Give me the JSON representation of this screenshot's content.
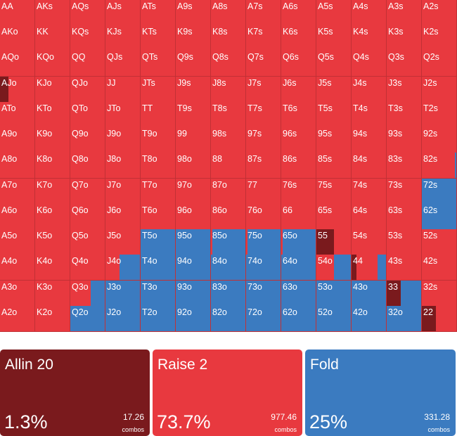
{
  "colors": {
    "allin": "#7a1a1d",
    "raise": "#e8393f",
    "fold": "#3b7bc0"
  },
  "grid": {
    "rows": [
      [
        "AA",
        "AKs",
        "AQs",
        "AJs",
        "ATs",
        "A9s",
        "A8s",
        "A7s",
        "A6s",
        "A5s",
        "A4s",
        "A3s",
        "A2s"
      ],
      [
        "AKo",
        "KK",
        "KQs",
        "KJs",
        "KTs",
        "K9s",
        "K8s",
        "K7s",
        "K6s",
        "K5s",
        "K4s",
        "K3s",
        "K2s"
      ],
      [
        "AQo",
        "KQo",
        "QQ",
        "QJs",
        "QTs",
        "Q9s",
        "Q8s",
        "Q7s",
        "Q6s",
        "Q5s",
        "Q4s",
        "Q3s",
        "Q2s"
      ],
      [
        "AJo",
        "KJo",
        "QJo",
        "JJ",
        "JTs",
        "J9s",
        "J8s",
        "J7s",
        "J6s",
        "J5s",
        "J4s",
        "J3s",
        "J2s"
      ],
      [
        "ATo",
        "KTo",
        "QTo",
        "JTo",
        "TT",
        "T9s",
        "T8s",
        "T7s",
        "T6s",
        "T5s",
        "T4s",
        "T3s",
        "T2s"
      ],
      [
        "A9o",
        "K9o",
        "Q9o",
        "J9o",
        "T9o",
        "99",
        "98s",
        "97s",
        "96s",
        "95s",
        "94s",
        "93s",
        "92s"
      ],
      [
        "A8o",
        "K8o",
        "Q8o",
        "J8o",
        "T8o",
        "98o",
        "88",
        "87s",
        "86s",
        "85s",
        "84s",
        "83s",
        "82s"
      ],
      [
        "A7o",
        "K7o",
        "Q7o",
        "J7o",
        "T7o",
        "97o",
        "87o",
        "77",
        "76s",
        "75s",
        "74s",
        "73s",
        "72s"
      ],
      [
        "A6o",
        "K6o",
        "Q6o",
        "J6o",
        "T6o",
        "96o",
        "86o",
        "76o",
        "66",
        "65s",
        "64s",
        "63s",
        "62s"
      ],
      [
        "A5o",
        "K5o",
        "Q5o",
        "J5o",
        "T5o",
        "95o",
        "85o",
        "75o",
        "65o",
        "55",
        "54s",
        "53s",
        "52s"
      ],
      [
        "A4o",
        "K4o",
        "Q4o",
        "J4o",
        "T4o",
        "94o",
        "84o",
        "74o",
        "64o",
        "54o",
        "44",
        "43s",
        "42s"
      ],
      [
        "A3o",
        "K3o",
        "Q3o",
        "J3o",
        "T3o",
        "93o",
        "83o",
        "73o",
        "63o",
        "53o",
        "43o",
        "33",
        "32s"
      ],
      [
        "A2o",
        "K2o",
        "Q2o",
        "J2o",
        "T2o",
        "92o",
        "82o",
        "72o",
        "62o",
        "52o",
        "42o",
        "32o",
        "22"
      ]
    ],
    "strategy": {
      "AJo": {
        "allin": 0.25,
        "raise": 0.75,
        "fold": 0
      },
      "82s": {
        "allin": 0,
        "raise": 0.95,
        "fold": 0.05
      },
      "72s": {
        "allin": 0,
        "raise": 0,
        "fold": 1
      },
      "62s": {
        "allin": 0,
        "raise": 0,
        "fold": 1
      },
      "J5o": {
        "allin": 0,
        "raise": 1,
        "fold": 0
      },
      "T5o": {
        "allin": 0,
        "raise": 0,
        "fold": 1
      },
      "95o": {
        "allin": 0,
        "raise": 0,
        "fold": 1
      },
      "85o": {
        "allin": 0,
        "raise": 0.05,
        "fold": 0.95
      },
      "75o": {
        "allin": 0,
        "raise": 0.05,
        "fold": 0.95
      },
      "65o": {
        "allin": 0,
        "raise": 0.05,
        "fold": 0.95
      },
      "55": {
        "allin": 0.5,
        "raise": 0.5,
        "fold": 0
      },
      "J4o": {
        "allin": 0,
        "raise": 0.4,
        "fold": 0.6
      },
      "T4o": {
        "allin": 0,
        "raise": 0,
        "fold": 1
      },
      "94o": {
        "allin": 0,
        "raise": 0,
        "fold": 1
      },
      "84o": {
        "allin": 0,
        "raise": 0,
        "fold": 1
      },
      "74o": {
        "allin": 0,
        "raise": 0,
        "fold": 1
      },
      "64o": {
        "allin": 0,
        "raise": 0,
        "fold": 1
      },
      "54o": {
        "allin": 0,
        "raise": 0.5,
        "fold": 0.5
      },
      "44": {
        "allin": 0.15,
        "raise": 0.6,
        "fold": 0.25
      },
      "Q3o": {
        "allin": 0,
        "raise": 0.6,
        "fold": 0.4
      },
      "J3o": {
        "allin": 0,
        "raise": 0,
        "fold": 1
      },
      "T3o": {
        "allin": 0,
        "raise": 0,
        "fold": 1
      },
      "93o": {
        "allin": 0,
        "raise": 0,
        "fold": 1
      },
      "83o": {
        "allin": 0,
        "raise": 0,
        "fold": 1
      },
      "73o": {
        "allin": 0,
        "raise": 0,
        "fold": 1
      },
      "63o": {
        "allin": 0,
        "raise": 0,
        "fold": 1
      },
      "53o": {
        "allin": 0,
        "raise": 0,
        "fold": 1
      },
      "43o": {
        "allin": 0,
        "raise": 0,
        "fold": 1
      },
      "33": {
        "allin": 0.4,
        "raise": 0,
        "fold": 0.6
      },
      "Q2o": {
        "allin": 0,
        "raise": 0,
        "fold": 1
      },
      "J2o": {
        "allin": 0,
        "raise": 0,
        "fold": 1
      },
      "T2o": {
        "allin": 0,
        "raise": 0,
        "fold": 1
      },
      "92o": {
        "allin": 0,
        "raise": 0,
        "fold": 1
      },
      "82o": {
        "allin": 0,
        "raise": 0,
        "fold": 1
      },
      "72o": {
        "allin": 0,
        "raise": 0,
        "fold": 1
      },
      "62o": {
        "allin": 0,
        "raise": 0,
        "fold": 1
      },
      "52o": {
        "allin": 0,
        "raise": 0,
        "fold": 1
      },
      "42o": {
        "allin": 0,
        "raise": 0,
        "fold": 1
      },
      "32o": {
        "allin": 0,
        "raise": 0,
        "fold": 1
      },
      "22": {
        "allin": 0.4,
        "raise": 0.6,
        "fold": 0
      }
    }
  },
  "summary": {
    "allin": {
      "label": "Allin 20",
      "pct": "1.3%",
      "combos": "17.26",
      "unit": "combos"
    },
    "raise": {
      "label": "Raise 2",
      "pct": "73.7%",
      "combos": "977.46",
      "unit": "combos"
    },
    "fold": {
      "label": "Fold",
      "pct": "25%",
      "combos": "331.28",
      "unit": "combos"
    }
  }
}
